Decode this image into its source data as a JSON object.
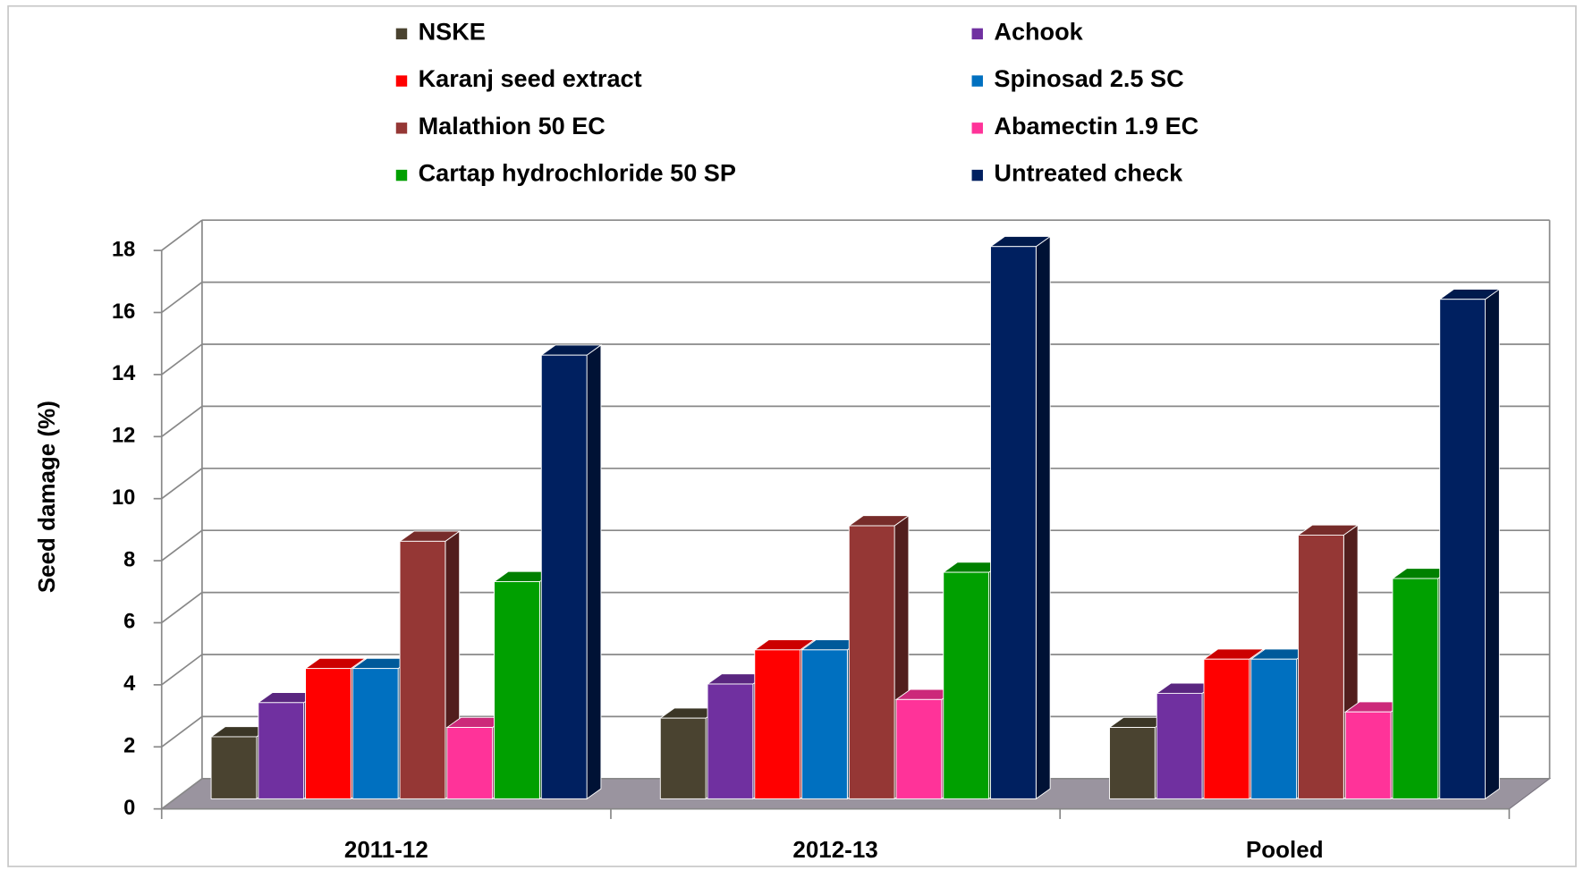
{
  "chart_data": {
    "type": "bar3d",
    "y_label": "Seed damage (%)",
    "categories": [
      "2011-12",
      "2012-13",
      "Pooled"
    ],
    "series": [
      {
        "name": "NSKE",
        "color": "#4a4330",
        "values": [
          2.0,
          2.6,
          2.3
        ]
      },
      {
        "name": "Achook",
        "color": "#7030a0",
        "values": [
          3.1,
          3.7,
          3.4
        ]
      },
      {
        "name": "Karanj seed extract",
        "color": "#ff0000",
        "values": [
          4.2,
          4.8,
          4.5
        ]
      },
      {
        "name": "Spinosad 2.5 SC",
        "color": "#0070c0",
        "values": [
          4.2,
          4.8,
          4.5
        ]
      },
      {
        "name": "Malathion 50 EC",
        "color": "#953735",
        "values": [
          8.3,
          8.8,
          8.5
        ]
      },
      {
        "name": "Abamectin 1.9 EC",
        "color": "#ff3399",
        "values": [
          2.3,
          3.2,
          2.8
        ]
      },
      {
        "name": "Cartap hydrochloride 50 SP",
        "color": "#00a000",
        "values": [
          7.0,
          7.3,
          7.1
        ]
      },
      {
        "name": "Untreated check",
        "color": "#002060",
        "values": [
          14.3,
          17.8,
          16.1
        ]
      }
    ],
    "ylim": [
      0,
      18
    ],
    "yticks": [
      0,
      2,
      4,
      6,
      8,
      10,
      12,
      14,
      16,
      18
    ],
    "grid": true
  }
}
